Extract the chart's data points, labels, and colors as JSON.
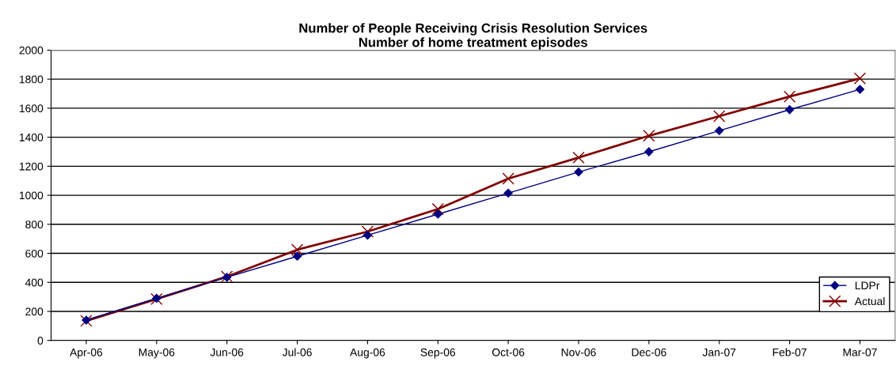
{
  "chart_data": {
    "type": "line",
    "title": "Number of People Receiving Crisis Resolution Services\nNumber of home treatment episodes",
    "categories": [
      "Apr-06",
      "May-06",
      "Jun-06",
      "Jul-06",
      "Aug-06",
      "Sep-06",
      "Oct-06",
      "Nov-06",
      "Dec-06",
      "Jan-07",
      "Feb-07",
      "Mar-07"
    ],
    "series": [
      {
        "name": "LDPr",
        "color": "#000080",
        "marker": "diamond",
        "values": [
          140,
          290,
          435,
          580,
          725,
          870,
          1015,
          1160,
          1300,
          1445,
          1590,
          1730
        ]
      },
      {
        "name": "Actual",
        "color": "#800000",
        "marker": "cross",
        "values": [
          135,
          285,
          440,
          625,
          750,
          905,
          1115,
          1260,
          1410,
          1545,
          1680,
          1805
        ]
      }
    ],
    "ylim": [
      0,
      2000
    ],
    "yticks": [
      0,
      200,
      400,
      600,
      800,
      1000,
      1200,
      1400,
      1600,
      1800,
      2000
    ],
    "grid": "y",
    "legend": "bottom right",
    "line_style": "solid"
  }
}
